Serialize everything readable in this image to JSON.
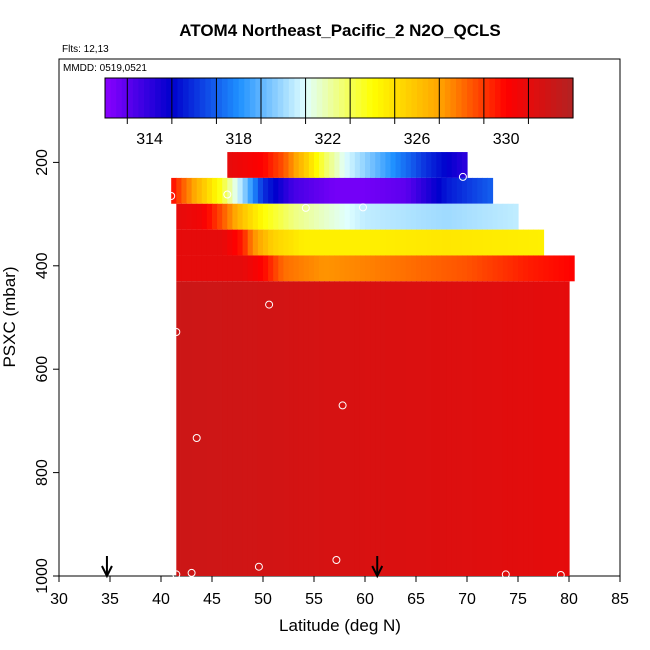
{
  "chart_data": {
    "type": "heatmap",
    "title": "ATOM4 Northeast_Pacific_2 N2O_QCLS",
    "flights_note": "Flts: 12,13",
    "date_note": "MMDD: 0519,0521",
    "xlabel": "Latitude (deg N)",
    "ylabel": "PSXC (mbar)",
    "xlim": [
      30,
      85
    ],
    "ylim": [
      1000,
      0
    ],
    "x_ticks": [
      30,
      35,
      40,
      45,
      50,
      55,
      60,
      65,
      70,
      75,
      80,
      85
    ],
    "y_ticks": [
      200,
      400,
      600,
      800,
      1000
    ],
    "colorbar": {
      "range": [
        312,
        333
      ],
      "tick_values": [
        314,
        318,
        322,
        326,
        330
      ],
      "tick_labels": [
        "314",
        "318",
        "322",
        "326",
        "330"
      ],
      "stops": [
        "#8B00FF",
        "#0000CD",
        "#1E90FF",
        "#E0FFFF",
        "#FFFF00",
        "#FFA500",
        "#FF0000",
        "#B22222"
      ]
    },
    "rows": [
      {
        "p": [
          180,
          230
        ],
        "lat": [
          46.5,
          70
        ],
        "v": [
          [
            46.5,
            331
          ],
          [
            50,
            330
          ],
          [
            52,
            328.5
          ],
          [
            54,
            326
          ],
          [
            56,
            323
          ],
          [
            58,
            321
          ],
          [
            62,
            318.5
          ],
          [
            66,
            316
          ],
          [
            70,
            314
          ]
        ]
      },
      {
        "p": [
          230,
          280
        ],
        "lat": [
          41,
          72.5
        ],
        "v": [
          [
            41,
            330
          ],
          [
            42,
            328.5
          ],
          [
            44,
            326
          ],
          [
            46,
            323.5
          ],
          [
            48,
            320
          ],
          [
            50,
            316
          ],
          [
            53,
            313.5
          ],
          [
            57,
            312.5
          ],
          [
            60,
            312.5
          ],
          [
            64,
            313
          ],
          [
            68,
            315.5
          ],
          [
            72.5,
            317
          ]
        ]
      },
      {
        "p": [
          280,
          330
        ],
        "lat": [
          41.5,
          75
        ],
        "v": [
          [
            41.5,
            331
          ],
          [
            44,
            330.5
          ],
          [
            46,
            328.5
          ],
          [
            48,
            326
          ],
          [
            50,
            324
          ],
          [
            53,
            322.5
          ],
          [
            60,
            320.5
          ],
          [
            68,
            320
          ],
          [
            75,
            320.5
          ]
        ]
      },
      {
        "p": [
          330,
          380
        ],
        "lat": [
          41.5,
          77.5
        ],
        "v": [
          [
            41.5,
            331
          ],
          [
            46,
            331
          ],
          [
            48,
            329.5
          ],
          [
            49,
            327.5
          ],
          [
            51,
            325.5
          ],
          [
            54,
            324.5
          ],
          [
            60,
            324.5
          ],
          [
            68,
            324.8
          ],
          [
            77.5,
            324.5
          ]
        ]
      },
      {
        "p": [
          380,
          430
        ],
        "lat": [
          41.5,
          80.5
        ],
        "v": [
          [
            41.5,
            331
          ],
          [
            48,
            331
          ],
          [
            50,
            330
          ],
          [
            52,
            328
          ],
          [
            56,
            327.3
          ],
          [
            62,
            327.8
          ],
          [
            70,
            328.5
          ],
          [
            76,
            329.5
          ],
          [
            80.5,
            330
          ]
        ]
      },
      {
        "p": [
          430,
          1000
        ],
        "lat": [
          41.5,
          80
        ],
        "v": [
          [
            41.5,
            332
          ],
          [
            50,
            331.8
          ],
          [
            60,
            331.5
          ],
          [
            70,
            331.3
          ],
          [
            80,
            331
          ]
        ]
      }
    ],
    "flight_points": [
      {
        "lat": 41,
        "p": 265
      },
      {
        "lat": 46.5,
        "p": 262
      },
      {
        "lat": 54.2,
        "p": 288
      },
      {
        "lat": 59.8,
        "p": 287
      },
      {
        "lat": 69.6,
        "p": 228
      },
      {
        "lat": 80.5,
        "p": 455
      },
      {
        "lat": 50.6,
        "p": 475
      },
      {
        "lat": 41.5,
        "p": 528
      },
      {
        "lat": 57.8,
        "p": 670
      },
      {
        "lat": 43.5,
        "p": 733
      },
      {
        "lat": 57.2,
        "p": 969
      },
      {
        "lat": 49.6,
        "p": 982
      },
      {
        "lat": 41.5,
        "p": 997
      },
      {
        "lat": 43,
        "p": 994
      },
      {
        "lat": 73.8,
        "p": 997
      },
      {
        "lat": 79.2,
        "p": 998
      }
    ],
    "arrows_lat": [
      34.7,
      61.2
    ],
    "grid": false
  }
}
